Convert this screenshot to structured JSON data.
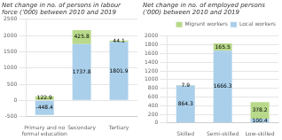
{
  "chart_data": [
    {
      "type": "bar",
      "title": "Net change in no. of persons in labour\nforce (’000) between 2010 and 2019",
      "categories": [
        "Primary and no\nformal education",
        "Secondary",
        "Tertiary"
      ],
      "series": [
        {
          "name": "Local workers",
          "color": "#aacfea",
          "values": [
            -448.4,
            1737.8,
            1801.9
          ]
        },
        {
          "name": "Migrant workers",
          "color": "#b8d98a",
          "values": [
            122.9,
            425.8,
            44.1
          ]
        }
      ],
      "stacked": true,
      "data_labels": true,
      "ylim": [
        -500,
        2500
      ],
      "yticks": [
        -500,
        0,
        500,
        1000,
        1500,
        2000,
        2500
      ],
      "grid": true
    },
    {
      "type": "bar",
      "title": "Net change in no. of employed persons\n(’000) between 2010 and 2019",
      "categories": [
        "Skilled",
        "Semi-skilled",
        "Low-skilled"
      ],
      "series": [
        {
          "name": "Local workers",
          "color": "#aacfea",
          "values": [
            864.3,
            1666.3,
            100.4
          ]
        },
        {
          "name": "Migrant workers",
          "color": "#b8d98a",
          "values": [
            7.9,
            165.5,
            378.2
          ]
        }
      ],
      "stacked": true,
      "data_labels": true,
      "ylim": [
        0,
        2000
      ],
      "yticks": [
        0,
        200,
        400,
        600,
        800,
        1000,
        1200,
        1400,
        1600,
        1800,
        2000
      ],
      "grid": true,
      "legend": "upper right"
    }
  ]
}
